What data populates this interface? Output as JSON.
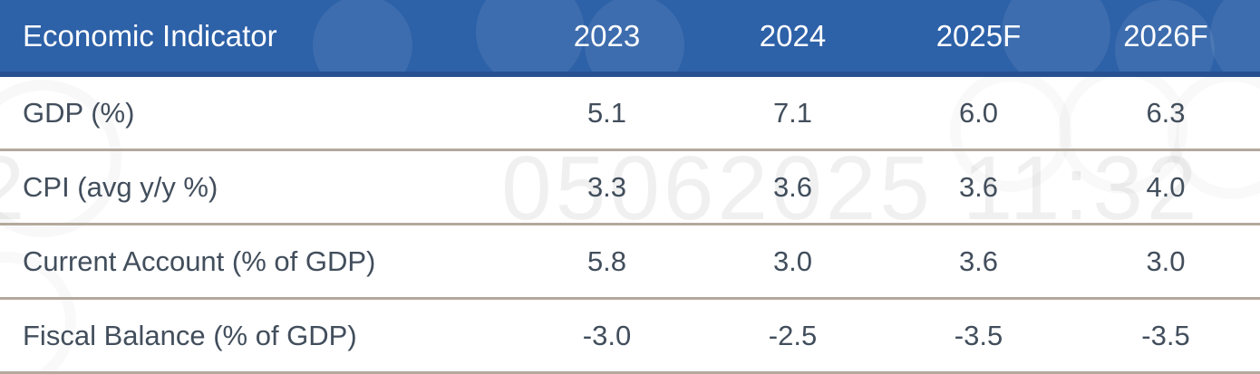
{
  "table": {
    "columns": [
      "Economic Indicator",
      "2023",
      "2024",
      "2025F",
      "2026F"
    ],
    "rows": [
      {
        "label": "GDP (%)",
        "values": [
          "5.1",
          "7.1",
          "6.0",
          "6.3"
        ]
      },
      {
        "label": "CPI (avg y/y %)",
        "values": [
          "3.3",
          "3.6",
          "3.6",
          "4.0"
        ]
      },
      {
        "label": "Current Account (% of GDP)",
        "values": [
          "5.8",
          "3.0",
          "3.6",
          "3.0"
        ]
      },
      {
        "label": "Fiscal Balance (% of GDP)",
        "values": [
          "-3.0",
          "-2.5",
          "-3.5",
          "-3.5"
        ]
      }
    ]
  },
  "chart_data": {
    "type": "table",
    "title": "Economic Indicator",
    "categories": [
      "2023",
      "2024",
      "2025F",
      "2026F"
    ],
    "series": [
      {
        "name": "GDP (%)",
        "values": [
          5.1,
          7.1,
          6.0,
          6.3
        ]
      },
      {
        "name": "CPI (avg y/y %)",
        "values": [
          3.3,
          3.6,
          3.6,
          4.0
        ]
      },
      {
        "name": "Current Account (% of GDP)",
        "values": [
          5.8,
          3.0,
          3.6,
          3.0
        ]
      },
      {
        "name": "Fiscal Balance (% of GDP)",
        "values": [
          -3.0,
          -2.5,
          -3.5,
          -3.5
        ]
      }
    ]
  },
  "watermark": {
    "text": "05062025 11:32",
    "partial_text": "32"
  },
  "colors": {
    "header_bg": "#2d61a8",
    "header_border": "#275090",
    "header_text": "#ffffff",
    "body_text": "#424e5c",
    "divider": "#b3a99c",
    "background": "#ffffff"
  }
}
